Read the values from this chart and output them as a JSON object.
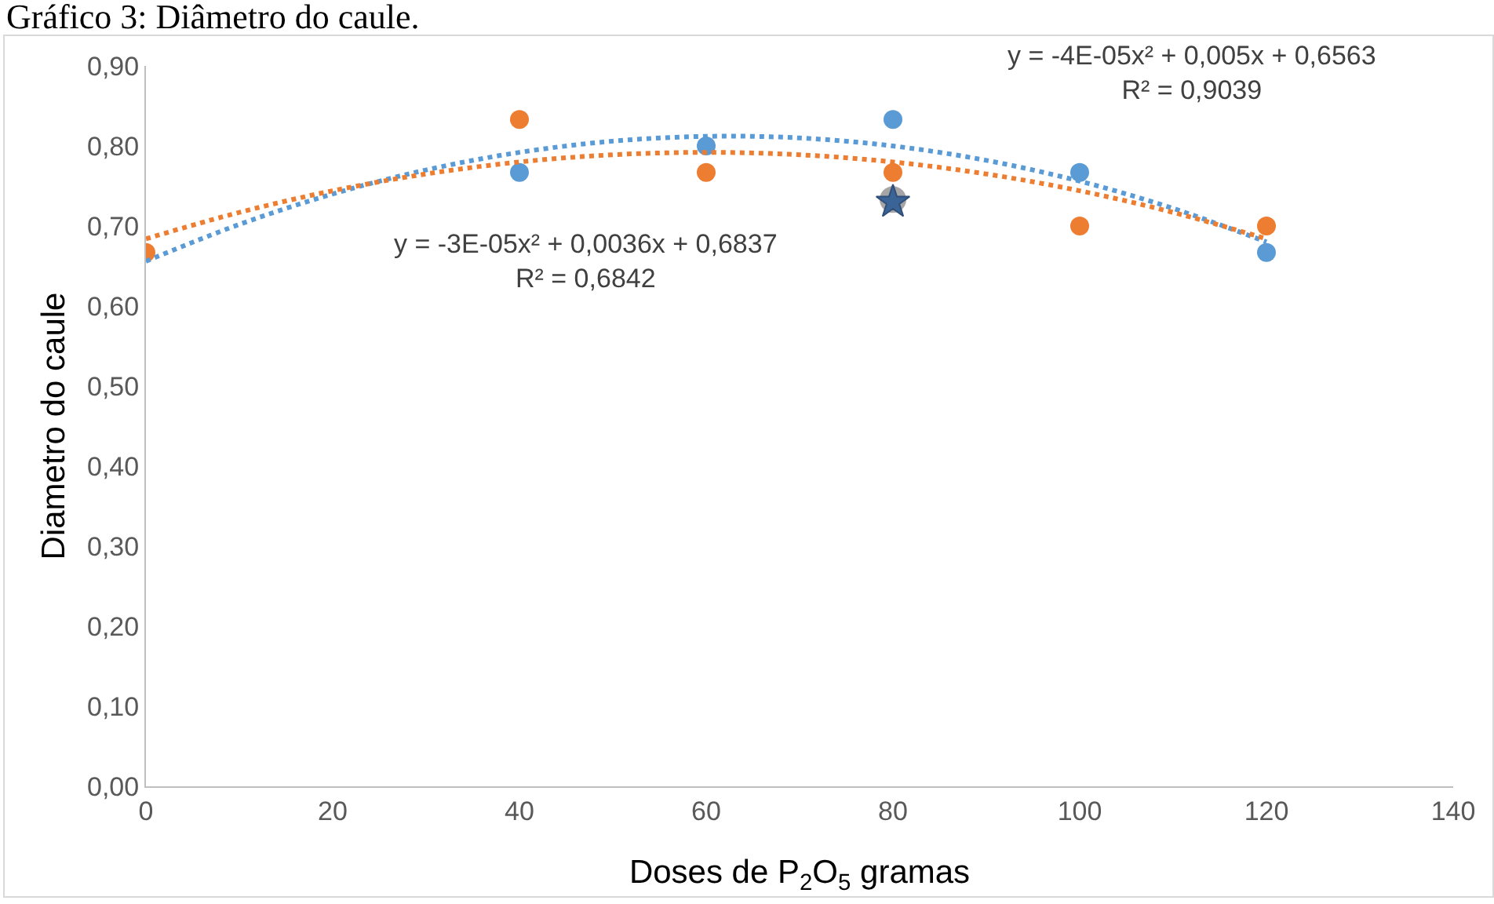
{
  "chart_data": {
    "type": "scatter",
    "title": "Gráfico 3: Diâmetro do caule.",
    "xlabel": "Doses de P$_{2}$O$_{5}$ gramas",
    "ylabel": "Diametro do caule",
    "x": [
      0,
      40,
      60,
      80,
      100,
      120
    ],
    "series": [
      {
        "color": "#5b9bd5",
        "marker": "circle",
        "values": [
          null,
          0.767,
          0.8,
          0.833,
          0.767,
          0.667
        ]
      },
      {
        "color": "#ed7d31",
        "marker": "circle",
        "values": [
          0.667,
          0.833,
          0.767,
          0.767,
          0.7,
          0.7
        ]
      },
      {
        "color": "#a5a5a5",
        "marker": "circle",
        "x": [
          80
        ],
        "values": [
          0.733
        ]
      },
      {
        "color": "#3a6496",
        "marker": "star",
        "x": [
          80
        ],
        "values": [
          0.73
        ]
      },
      {
        "type": "line",
        "color": "#5b9bd5",
        "line_style": "dotted",
        "marker": "none",
        "x": [
          0,
          10,
          20,
          30,
          40,
          50,
          60,
          70,
          80,
          90,
          100,
          110,
          120
        ],
        "values": [
          0.656,
          0.702,
          0.74,
          0.77,
          0.792,
          0.806,
          0.812,
          0.81,
          0.8,
          0.782,
          0.756,
          0.722,
          0.68
        ]
      },
      {
        "type": "line",
        "color": "#ed7d31",
        "line_style": "dotted",
        "marker": "none",
        "x": [
          0,
          10,
          20,
          30,
          40,
          50,
          60,
          70,
          80,
          90,
          100,
          110,
          120
        ],
        "values": [
          0.684,
          0.717,
          0.744,
          0.765,
          0.78,
          0.789,
          0.792,
          0.789,
          0.78,
          0.765,
          0.744,
          0.717,
          0.684
        ]
      }
    ],
    "annotations": [
      "y = -4E-05x² + 0,005x + 0,6563\nR² = 0,9039",
      "y = -3E-05x² + 0,0036x + 0,6837\nR² = 0,6842"
    ],
    "xlim": [
      0,
      140
    ],
    "xticks": [
      0,
      20,
      40,
      60,
      80,
      100,
      120,
      140
    ],
    "ylim": [
      0,
      0.9
    ],
    "yticks": [
      {
        "value": 0,
        "label": "0,00"
      },
      {
        "value": 0.1,
        "label": "0,10"
      },
      {
        "value": 0.2,
        "label": "0,20"
      },
      {
        "value": 0.3,
        "label": "0,30"
      },
      {
        "value": 0.4,
        "label": "0,40"
      },
      {
        "value": 0.5,
        "label": "0,50"
      },
      {
        "value": 0.6,
        "label": "0,60"
      },
      {
        "value": 0.7,
        "label": "0,70"
      },
      {
        "value": 0.8,
        "label": "0,80"
      },
      {
        "value": 0.9,
        "label": "0,90"
      }
    ],
    "grid": false
  }
}
